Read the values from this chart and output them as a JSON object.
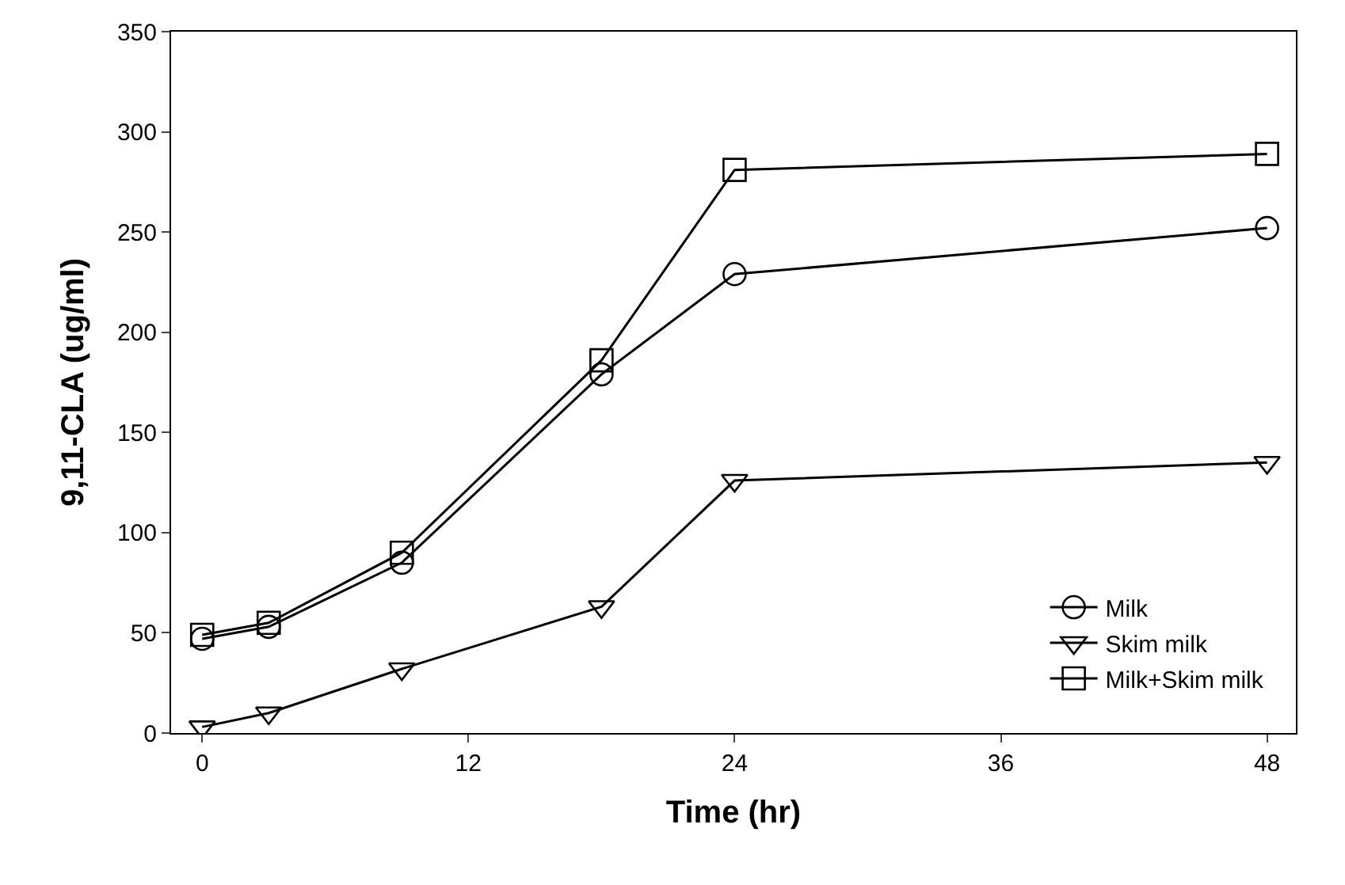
{
  "chart_data": {
    "type": "line",
    "xlabel": "Time (hr)",
    "ylabel": "9,11-CLA (ug/ml)",
    "x": [
      0,
      3,
      9,
      18,
      24,
      48
    ],
    "series": [
      {
        "name": "Milk",
        "color": "#000000",
        "marker": "circle",
        "values": [
          47,
          53,
          85,
          179,
          229,
          252
        ]
      },
      {
        "name": "Skim milk",
        "color": "#000000",
        "marker": "triangle",
        "values": [
          3,
          10,
          32,
          63,
          126,
          135
        ]
      },
      {
        "name": "Milk+Skim milk",
        "color": "#000000",
        "marker": "square",
        "values": [
          49,
          55,
          90,
          186,
          281,
          289
        ]
      }
    ],
    "xlim": [
      -1.4,
      49.3
    ],
    "xticks": [
      0,
      12,
      24,
      36,
      48
    ],
    "ylim": [
      0,
      350
    ],
    "yticks": [
      0,
      50,
      100,
      150,
      200,
      250,
      300,
      350
    ],
    "legend": "bottom right",
    "line_style": "solid"
  }
}
